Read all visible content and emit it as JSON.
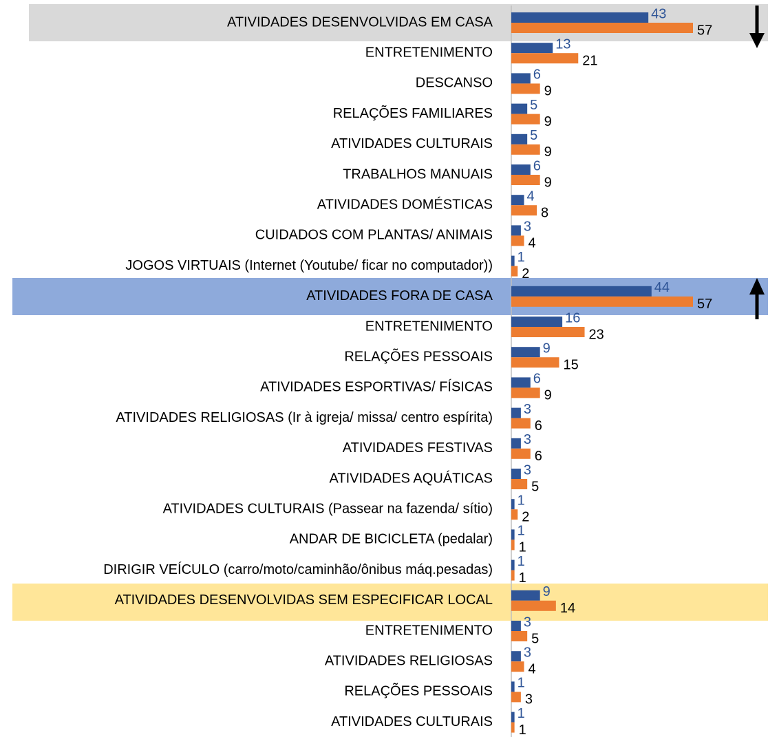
{
  "chart_data": {
    "type": "bar",
    "orientation": "horizontal",
    "categories": [
      "ATIVIDADES DESENVOLVIDAS EM CASA",
      "ENTRETENIMENTO",
      "DESCANSO",
      "RELAÇÕES FAMILIARES",
      "ATIVIDADES CULTURAIS",
      "TRABALHOS MANUAIS",
      "ATIVIDADES DOMÉSTICAS",
      "CUIDADOS COM PLANTAS/ ANIMAIS",
      "JOGOS VIRTUAIS (Internet (Youtube/ ficar no computador))",
      "ATIVIDADES FORA DE CASA",
      "ENTRETENIMENTO",
      "RELAÇÕES PESSOAIS",
      "ATIVIDADES ESPORTIVAS/ FÍSICAS",
      "ATIVIDADES RELIGIOSAS (Ir à igreja/ missa/ centro espírita)",
      "ATIVIDADES FESTIVAS ",
      "ATIVIDADES AQUÁTICAS",
      "ATIVIDADES CULTURAIS (Passear na fazenda/ sítio)",
      "ANDAR DE BICICLETA (pedalar)",
      "DIRIGIR VEÍCULO (carro/moto/caminhão/ônibus máq.pesadas)",
      "ATIVIDADES DESENVOLVIDAS SEM ESPECIFICAR LOCAL",
      "ENTRETENIMENTO",
      "ATIVIDADES RELIGIOSAS",
      "RELAÇÕES PESSOAIS",
      "ATIVIDADES CULTURAIS"
    ],
    "series": [
      {
        "color": "#2f5597",
        "values": [
          43,
          13,
          6,
          5,
          5,
          6,
          4,
          3,
          1,
          44,
          16,
          9,
          6,
          3,
          3,
          3,
          1,
          1,
          1,
          9,
          3,
          3,
          1,
          1
        ]
      },
      {
        "color": "#ed7d31",
        "values": [
          57,
          21,
          9,
          9,
          9,
          9,
          8,
          4,
          2,
          57,
          23,
          15,
          9,
          6,
          6,
          5,
          2,
          1,
          1,
          14,
          5,
          4,
          3,
          1
        ]
      }
    ]
  }
}
